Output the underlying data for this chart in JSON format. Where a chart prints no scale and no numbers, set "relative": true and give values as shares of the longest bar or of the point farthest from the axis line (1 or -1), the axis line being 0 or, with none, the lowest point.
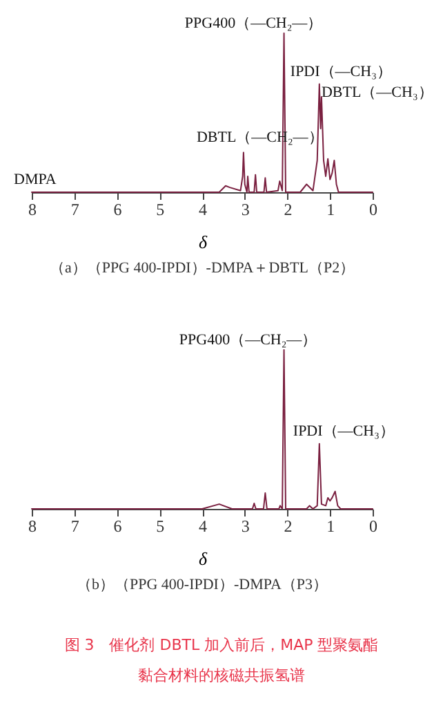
{
  "chart_data": [
    {
      "type": "line",
      "relative": true,
      "title": "（a）（PPG 400-IPDI）-DMPA＋DBTL（P2）",
      "xlabel": "δ",
      "xlim": [
        8,
        0
      ],
      "xticks": [
        8,
        7,
        6,
        5,
        4,
        3,
        2,
        1,
        0
      ],
      "x": [
        8,
        3.6,
        3.45,
        3.35,
        3.1,
        3.05,
        3.03,
        3.0,
        2.95,
        2.93,
        2.9,
        2.78,
        2.75,
        2.72,
        2.55,
        2.52,
        2.49,
        2.22,
        2.18,
        2.12,
        2.08,
        2.04,
        1.7,
        1.55,
        1.4,
        1.3,
        1.25,
        1.22,
        1.2,
        1.15,
        1.1,
        1.05,
        1.0,
        0.95,
        0.9,
        0.85,
        0.8,
        0
      ],
      "series": [
        {
          "color": "#7a2040",
          "values": [
            0,
            0,
            0.04,
            0.03,
            0.01,
            0.1,
            0.25,
            0.05,
            0,
            0.1,
            0,
            0,
            0.11,
            0,
            0,
            0.09,
            0,
            0.01,
            0.07,
            0.01,
            1.0,
            0,
            0,
            0.05,
            0.01,
            0.2,
            0.68,
            0.4,
            0.6,
            0.2,
            0.1,
            0.21,
            0.08,
            0.12,
            0.2,
            0.05,
            0,
            0
          ]
        }
      ],
      "annotations": [
        {
          "text": "PPG400（—CH₂—）",
          "x": 2.08,
          "y": 1.0
        },
        {
          "text": "IPDI（—CH₃）",
          "x": 1.25,
          "y": 0.68
        },
        {
          "text": "DBTL（—CH₃）",
          "x": 1.2,
          "y": 0.6
        },
        {
          "text": "DBTL（—CH₂—）",
          "x": 3.03,
          "y": 0.25
        },
        {
          "text": "DMPA",
          "x": 8,
          "y": 0
        }
      ]
    },
    {
      "type": "line",
      "relative": true,
      "title": "（b）（PPG 400-IPDI）-DMPA（P3）",
      "xlabel": "δ",
      "xlim": [
        8,
        0
      ],
      "xticks": [
        8,
        7,
        6,
        5,
        4,
        3,
        2,
        1,
        0
      ],
      "x": [
        8,
        4.0,
        3.6,
        3.3,
        2.82,
        2.78,
        2.74,
        2.56,
        2.52,
        2.48,
        2.2,
        2.17,
        2.12,
        2.08,
        2.04,
        1.55,
        1.48,
        1.4,
        1.3,
        1.25,
        1.2,
        1.1,
        1.05,
        1.0,
        0.95,
        0.88,
        0.82,
        0.75,
        0
      ],
      "series": [
        {
          "color": "#7a2040",
          "values": [
            0,
            0,
            0.03,
            0,
            0,
            0.035,
            0,
            0,
            0.1,
            0,
            0,
            0.02,
            0,
            1.0,
            0,
            0,
            0.02,
            0,
            0.02,
            0.41,
            0.03,
            0.02,
            0.07,
            0.05,
            0.07,
            0.11,
            0.02,
            0,
            0
          ]
        }
      ],
      "annotations": [
        {
          "text": "PPG400（—CH₂—）",
          "x": 2.08,
          "y": 1.0
        },
        {
          "text": "IPDI（—CH₃）",
          "x": 1.25,
          "y": 0.41
        },
        "图 3　催化剂 DBTL 加入前后，MAP 型聚氨酯黏合材料的核磁共振氢谱"
      ]
    }
  ]
}
